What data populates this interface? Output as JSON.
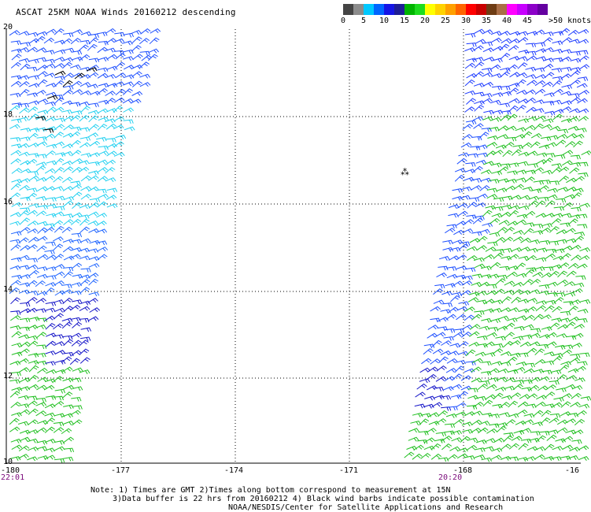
{
  "header": {
    "title": "ASCAT 25KM NOAA Winds 20160212 descending"
  },
  "legend": {
    "colors": [
      "#444444",
      "#8c8c8c",
      "#00c8ff",
      "#0066ff",
      "#1515e6",
      "#1e1e96",
      "#00b400",
      "#1edc1e",
      "#ffff00",
      "#ffd200",
      "#ffa000",
      "#ff6400",
      "#ff0000",
      "#c80000",
      "#6e3c14",
      "#aa6e46",
      "#ff00ff",
      "#c800ff",
      "#8c00c8",
      "#6400a0"
    ],
    "labels": [
      "0",
      "5",
      "10",
      "15",
      "20",
      "25",
      "30",
      "35",
      "40",
      "45"
    ],
    "units": ">50 knots"
  },
  "map": {
    "lat_labels": [
      "20",
      "18",
      "16",
      "14",
      "12",
      "10"
    ],
    "lon_labels": [
      "-180",
      "-177",
      "-174",
      "-171",
      "-168",
      "-16"
    ],
    "time_labels": [
      "22:01",
      "20:20"
    ],
    "station_mark": "⁂"
  },
  "notes": {
    "line1": "Note: 1) Times are GMT 2)Times along bottom correspond to measurement at 15N",
    "line2": "3)Data buffer is 22 hrs from 20160212 4) Black wind barbs indicate possible contamination",
    "line3": "NOAA/NESDIS/Center for Satellite Applications and Research"
  }
}
